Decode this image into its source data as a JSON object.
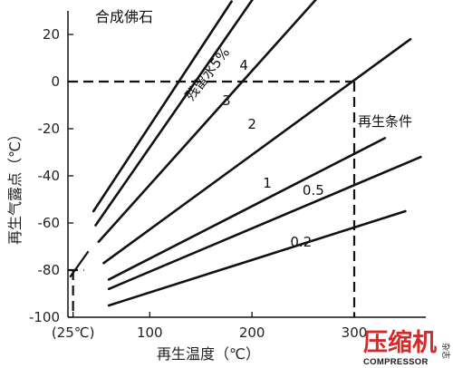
{
  "chart_data": {
    "type": "line",
    "title": "合成佛石",
    "xlabel": "再生温度（℃）",
    "ylabel": "再生气露点（℃）",
    "xlim": [
      20,
      370
    ],
    "ylim": [
      -100,
      30
    ],
    "x_ticks": [
      {
        "value": 25,
        "label": "(25℃)"
      },
      {
        "value": 100,
        "label": "100"
      },
      {
        "value": 200,
        "label": "200"
      },
      {
        "value": 300,
        "label": "300"
      }
    ],
    "y_ticks": [
      20,
      0,
      -20,
      -40,
      -60,
      -80,
      -100
    ],
    "series": [
      {
        "name": "残留水5%",
        "x": [
          45,
          180
        ],
        "y": [
          -55,
          34
        ],
        "label_x": 160,
        "label_y": 2
      },
      {
        "name": "4",
        "x": [
          47,
          212
        ],
        "y": [
          -61,
          42
        ],
        "label_x": 192,
        "label_y": 5
      },
      {
        "name": "3",
        "x": [
          50,
          265
        ],
        "y": [
          -68,
          36
        ],
        "label_x": 175,
        "label_y": -10
      },
      {
        "name": "2",
        "x": [
          55,
          355
        ],
        "y": [
          -77,
          18
        ],
        "label_x": 200,
        "label_y": -20
      },
      {
        "name": "1",
        "x": [
          60,
          330
        ],
        "y": [
          -84,
          -24
        ],
        "label_x": 215,
        "label_y": -45
      },
      {
        "name": "0.5",
        "x": [
          60,
          365
        ],
        "y": [
          -88,
          -32
        ],
        "label_x": 260,
        "label_y": -48
      },
      {
        "name": "0.2",
        "x": [
          60,
          350
        ],
        "y": [
          -95,
          -55
        ],
        "label_x": 248,
        "label_y": -70
      }
    ],
    "reference_lines": {
      "label": "再生条件",
      "y_zero_to_x": 300,
      "x_at": 300,
      "x_at_y_from": -100,
      "x_25_y_from": -100,
      "x_25_y_to": -80,
      "y_minus80_from_x": 20,
      "y_minus80_to_x": 25
    },
    "extra_line": {
      "x": [
        22,
        40
      ],
      "y": [
        -83,
        -72
      ]
    },
    "grid": false,
    "legend": "inline-labels"
  },
  "logo": {
    "main": "压缩机",
    "sub": "COMPRESSOR",
    "side": "杂志"
  }
}
